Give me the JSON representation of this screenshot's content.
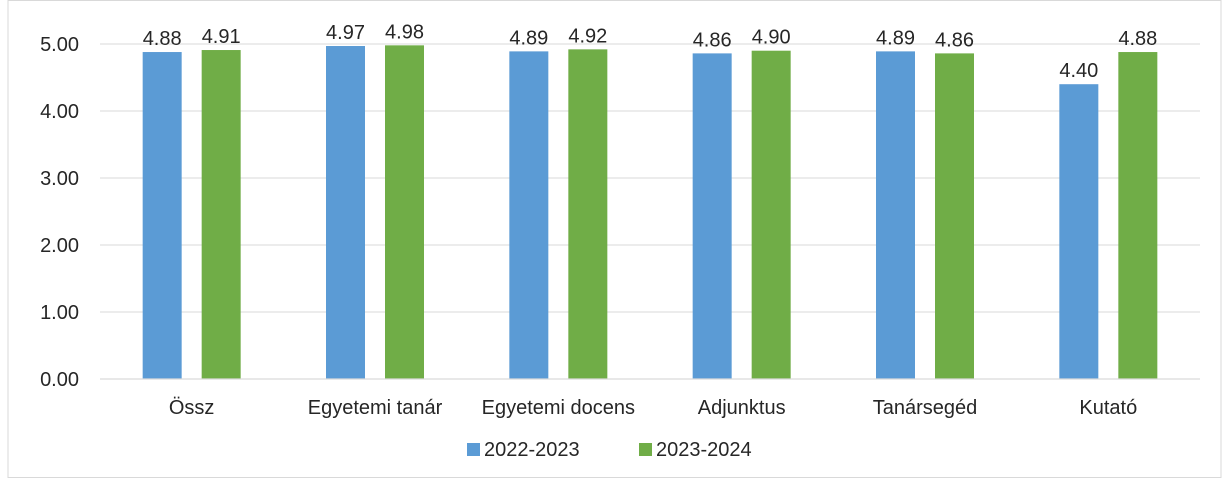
{
  "chart_data": {
    "type": "bar",
    "categories": [
      "Össz",
      "Egyetemi tanár",
      "Egyetemi docens",
      "Adjunktus",
      "Tanársegéd",
      "Kutató"
    ],
    "series": [
      {
        "name": "2022-2023",
        "color": "#5b9bd5",
        "values": [
          4.88,
          4.97,
          4.89,
          4.86,
          4.89,
          4.4
        ],
        "labels": [
          "4.88",
          "4.97",
          "4.89",
          "4.86",
          "4.89",
          "4.40"
        ]
      },
      {
        "name": "2023-2024",
        "color": "#70ad47",
        "values": [
          4.91,
          4.98,
          4.92,
          4.9,
          4.86,
          4.88
        ],
        "labels": [
          "4.91",
          "4.98",
          "4.92",
          "4.90",
          "4.86",
          "4.88"
        ]
      }
    ],
    "y_ticks": [
      "0.00",
      "1.00",
      "2.00",
      "3.00",
      "4.00",
      "5.00"
    ],
    "ylim": [
      0,
      5
    ],
    "grid": true,
    "legend": "bottom"
  }
}
